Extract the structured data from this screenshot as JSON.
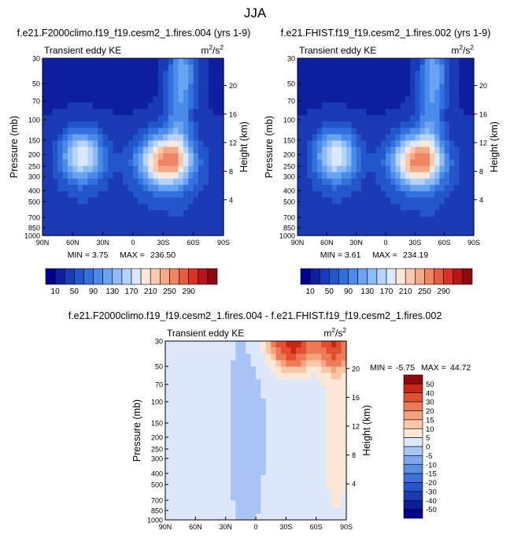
{
  "page_title": "JJA",
  "chart_data": [
    {
      "type": "heatmap",
      "title": "f.e21.F2000climo.f19_f19.cesm2_1.fires.004 (yrs 1-9)",
      "subtitle_left": "Transient eddy KE",
      "units": "m2/s2",
      "ylabel": "Pressure (mb)",
      "ylabel_right": "Height (km)",
      "x_ticks": [
        "90N",
        "60N",
        "30N",
        "0",
        "30S",
        "60S",
        "90S"
      ],
      "y_ticks": [
        "30",
        "50",
        "70",
        "100",
        "150",
        "200",
        "250",
        "300",
        "400",
        "500",
        "700",
        "850",
        "1000"
      ],
      "y_right_ticks": [
        "20",
        "16",
        "12",
        "8",
        "4"
      ],
      "min_label": "MIN =",
      "min_value": "3.75",
      "max_label": "MAX =",
      "max_value": "236.50",
      "colorbar_labels": [
        "10",
        "50",
        "90",
        "130",
        "170",
        "210",
        "250",
        "290"
      ]
    },
    {
      "type": "heatmap",
      "title": "f.e21.FHIST.f19_f19.cesm2_1.fires.002 (yrs 1-9)",
      "subtitle_left": "Transient eddy KE",
      "units": "m2/s2",
      "ylabel": "Pressure (mb)",
      "ylabel_right": "Height (km)",
      "x_ticks": [
        "90N",
        "60N",
        "30N",
        "0",
        "30S",
        "60S",
        "90S"
      ],
      "y_ticks": [
        "30",
        "50",
        "70",
        "100",
        "150",
        "200",
        "250",
        "300",
        "400",
        "500",
        "700",
        "850",
        "1000"
      ],
      "y_right_ticks": [
        "20",
        "16",
        "12",
        "8",
        "4"
      ],
      "min_label": "MIN =",
      "min_value": "3.61",
      "max_label": "MAX =",
      "max_value": "234.19",
      "colorbar_labels": [
        "10",
        "50",
        "90",
        "130",
        "170",
        "210",
        "250",
        "290"
      ]
    },
    {
      "type": "heatmap",
      "title": "f.e21.F2000climo.f19_f19.cesm2_1.fires.004 - f.e21.FHIST.f19_f19.cesm2_1.fires.002",
      "subtitle_left": "Transient eddy KE",
      "units": "m2/s2",
      "ylabel": "Pressure (mb)",
      "ylabel_right": "Height (km)",
      "x_ticks": [
        "90N",
        "60N",
        "30N",
        "0",
        "30S",
        "60S",
        "90S"
      ],
      "y_ticks": [
        "30",
        "50",
        "70",
        "100",
        "150",
        "200",
        "250",
        "300",
        "400",
        "500",
        "700",
        "850",
        "1000"
      ],
      "y_right_ticks": [
        "20",
        "16",
        "12",
        "8",
        "4"
      ],
      "min_label": "MIN =",
      "min_value": "-5.75",
      "max_label": "MAX =",
      "max_value": "44.72",
      "colorbar_labels": [
        "50",
        "40",
        "30",
        "20",
        "15",
        "10",
        "5",
        "0",
        "-5",
        "-10",
        "-15",
        "-20",
        "-30",
        "-40",
        "-50"
      ]
    }
  ],
  "colors": {
    "top_scale": [
      "#000090",
      "#0e1fa0",
      "#1a3bb5",
      "#2456cb",
      "#3271dd",
      "#4a8ae8",
      "#6aa4f0",
      "#8fbcf5",
      "#b6d3f8",
      "#dce8fb",
      "#fbe8d7",
      "#f8cbb0",
      "#f4a988",
      "#ef8563",
      "#e75c3d",
      "#d83322",
      "#b8141a",
      "#8c0a10"
    ],
    "diff_scale": [
      "#00008b",
      "#0a1f9c",
      "#1a3bb5",
      "#2456cb",
      "#3c72dd",
      "#5a8de6",
      "#7ea6ee",
      "#a8c4f4",
      "#dce8fa",
      "#fde8d6",
      "#f9c7a6",
      "#f4a37f",
      "#ee7b57",
      "#e3502f",
      "#c92819",
      "#8f0a0a"
    ]
  }
}
